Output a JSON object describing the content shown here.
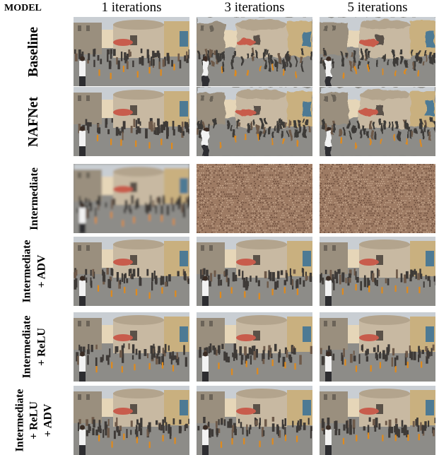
{
  "header": {
    "model_label": "MODEL",
    "columns": [
      "1 iterations",
      "3 iterations",
      "5 iterations"
    ]
  },
  "rows": [
    {
      "label_lines": [
        "Baseline"
      ],
      "variant": [
        "clear",
        "swirl",
        "swirl"
      ]
    },
    {
      "label_lines": [
        "NAFNet"
      ],
      "variant": [
        "clear",
        "swirl",
        "swirl"
      ]
    },
    {
      "label_lines": [
        "Intermediate"
      ],
      "variant": [
        "blur",
        "noise",
        "noise"
      ]
    },
    {
      "label_lines": [
        "Intermediate",
        "+ ADV"
      ],
      "variant": [
        "clear",
        "clear",
        "clear"
      ]
    },
    {
      "label_lines": [
        "Intermediate",
        "+ ReLU"
      ],
      "variant": [
        "clear",
        "clear",
        "clear"
      ]
    },
    {
      "label_lines": [
        "Intermediate",
        "+ ReLU",
        "+ ADV"
      ],
      "variant": [
        "clear",
        "clear",
        "clear"
      ]
    }
  ],
  "colors": {
    "sky": "#c9ced3",
    "dome_building": "#c8b9a2",
    "left_building": "#9a8f7e",
    "right_building": "#c9b07f",
    "ground": "#8d8c88",
    "crowd": "#3e3a37",
    "bollard": "#e08a1c",
    "noise": "#9c7a63"
  }
}
